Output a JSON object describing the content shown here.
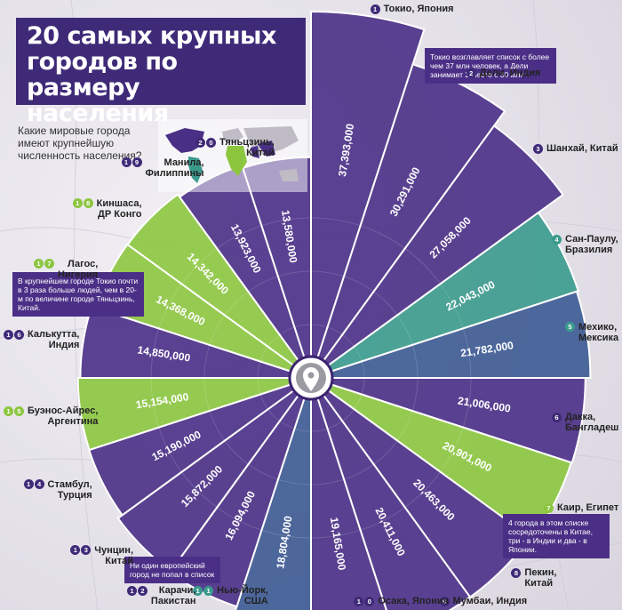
{
  "title": [
    "20 самых крупных",
    "городов по размеру",
    "населения"
  ],
  "question": "Какие мировые города имеют крупнейшую численность населения?",
  "notes": {
    "tokyo_delhi": "Токио возглавляет список с более чем 37 млн человек, а Дели занимает 2 место с 30 млн",
    "tokyo_vs_tianjin": "В крупнейшем городе Токио почти в 3 раза больше людей, чем в 20-м по величине городе Тяньцзинь, Китай.",
    "countries": "4 города в этом списке сосредоточены в Китае, три - в Индии и два - в Японии.",
    "europe": "Ни один европейский город не попал в список"
  },
  "colors": {
    "purple": "#4a2f86",
    "purple_dark": "#3b2370",
    "green": "#8cc63f",
    "teal": "#3a9a8c",
    "blue": "#3c5a92",
    "title_bg": "#3f2a78"
  },
  "chart_data": {
    "type": "bar",
    "title": "20 самых крупных городов по размеру населения",
    "categories": [
      "Токио, Япония",
      "Дели, Индия",
      "Шанхай, Китай",
      "Сан-Паулу, Бразилия",
      "Мехико, Мексика",
      "Дакка, Бангладеш",
      "Каир, Египет",
      "Пекин, Китай",
      "Мумбаи, Индия",
      "Осака, Япония",
      "Нью-Йорк, США",
      "Карачи, Пакистан",
      "Чунцин, Китай",
      "Стамбул, Турция",
      "Буэнос-Айрес, Аргентина",
      "Калькутта, Индия",
      "Лагос, Нигерия",
      "Киншаса, ДР Конго",
      "Манила, Филиппины",
      "Тяньцзинь, Китай"
    ],
    "ranks": [
      "1",
      "2",
      "3",
      "4",
      "5",
      "6",
      "7",
      "8",
      "9",
      "10",
      "11",
      "12",
      "13",
      "14",
      "15",
      "16",
      "17",
      "18",
      "19",
      "20"
    ],
    "values": [
      37393000,
      30291000,
      27058000,
      22043000,
      21782000,
      21006000,
      20901000,
      20463000,
      20411000,
      19165000,
      18804000,
      16094000,
      15872000,
      15190000,
      15154000,
      14850000,
      14368000,
      14342000,
      13923000,
      13580000
    ],
    "value_labels": [
      "37,393,000",
      "30,291,000",
      "27,058,000",
      "22,043,000",
      "21,782,000",
      "21,006,000",
      "20,901,000",
      "20,463,000",
      "20,411,000",
      "19,165,000",
      "18,804,000",
      "16,094,000",
      "15,872,000",
      "15,190,000",
      "15,154,000",
      "14,850,000",
      "14,368,000",
      "14,342,000",
      "13,923,000",
      "13,580,000"
    ],
    "city_labels": [
      [
        "Токио, Япония"
      ],
      [
        "Дели, Индия"
      ],
      [
        "Шанхай, Китай"
      ],
      [
        "Сан-Паулу,",
        "Бразилия"
      ],
      [
        "Мехико,",
        "Мексика"
      ],
      [
        "Дакка,",
        "Бангладеш"
      ],
      [
        "Каир, Египет"
      ],
      [
        "Пекин,",
        "Китай"
      ],
      [
        "Мумбаи, Индия"
      ],
      [
        "Осака, Япония"
      ],
      [
        "Нью-Йорк,",
        "США"
      ],
      [
        "Карачи,",
        "Пакистан"
      ],
      [
        "Чунцин,",
        "Китай"
      ],
      [
        "Стамбул,",
        "Турция"
      ],
      [
        "Буэнос-Айрес,",
        "Аргентина"
      ],
      [
        "Калькутта,",
        "Индия"
      ],
      [
        "Лагос,",
        "Нигерия"
      ],
      [
        "Киншаса,",
        "ДР Конго"
      ],
      [
        "Манила,",
        "Филиппины"
      ],
      [
        "Тяньцзинь,",
        "Китай"
      ]
    ],
    "colors": [
      "#4a2f86",
      "#4a2f86",
      "#4a2f86",
      "#3a9a8c",
      "#3c5a92",
      "#4a2f86",
      "#8cc63f",
      "#4a2f86",
      "#4a2f86",
      "#4a2f86",
      "#3c5a92",
      "#4a2f86",
      "#4a2f86",
      "#4a2f86",
      "#8cc63f",
      "#4a2f86",
      "#8cc63f",
      "#8cc63f",
      "#4a2f86",
      "#4a2f86"
    ],
    "badge_styles": [
      "p",
      "p",
      "p",
      "t",
      "t",
      "p",
      "g",
      "p",
      "p",
      "p",
      "t",
      "p",
      "p",
      "p",
      "g",
      "p",
      "g",
      "g",
      "p",
      "p"
    ]
  }
}
